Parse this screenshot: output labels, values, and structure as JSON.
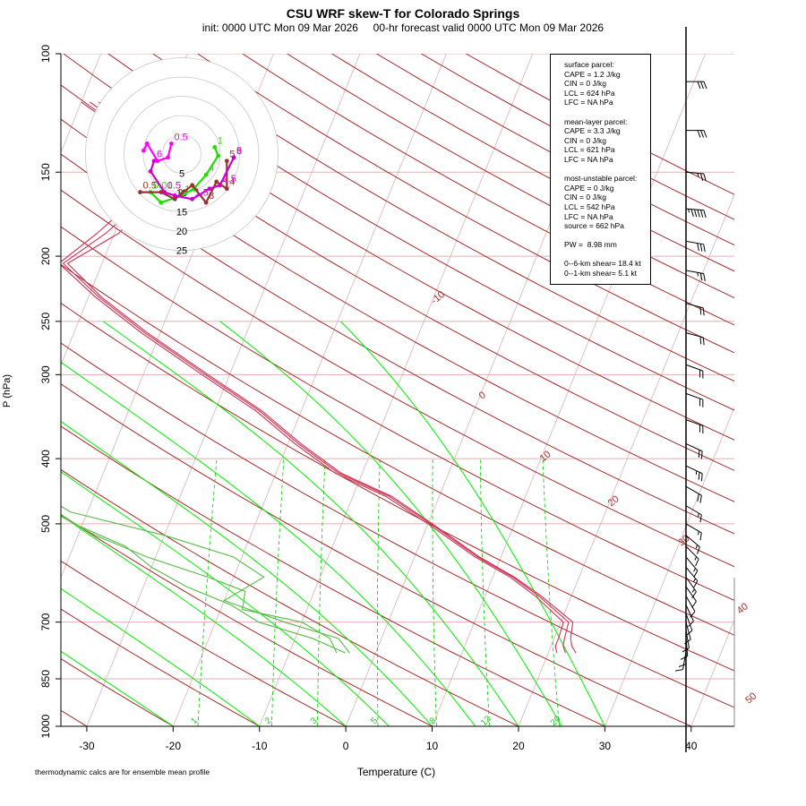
{
  "title": "CSU WRF skew-T for Colorado Springs",
  "subtitle": "init: 0000 UTC Mon 09 Mar 2026     00-hr forecast valid 0000 UTC Mon 09 Mar 2026",
  "footnote": "thermodynamic calcs are for ensemble mean profile",
  "colors": {
    "isotherm": "#d9b3b3",
    "dry_adiabat": "#a52a2a",
    "moist_adiabat": "#00ee00",
    "mixing_ratio": "#00cc00",
    "temperature": "#cc3355",
    "dewpoint": "#55bb44",
    "hodo_ring": "#c8c8c8"
  },
  "info_box": {
    "surface": [
      "surface parcel:",
      "CAPE = 1.2 J/kg",
      "CIN = 0 J/kg",
      "LCL = 624 hPa",
      "LFC = NA hPa"
    ],
    "mean_layer": [
      "mean-layer parcel:",
      "CAPE = 3.3 J/kg",
      "CIN = 0 J/kg",
      "LCL = 621 hPa",
      "LFC = NA hPa"
    ],
    "most_unstable": [
      "most-unstable parcel:",
      "CAPE = 0 J/kg",
      "CIN = 0 J/kg",
      "LCL = 542 hPa",
      "LFC = NA hPa",
      "source = 662 hPa"
    ],
    "pw": [
      "PW =  8.98 mm"
    ],
    "shear": [
      "0--6-km shear= 18.4 kt",
      "0--1-km shear= 5.1 kt"
    ]
  },
  "chart_data": {
    "type": "line",
    "title": "CSU WRF skew-T for Colorado Springs",
    "xlabel": "Temperature (C)",
    "ylabel": "P (hPa)",
    "xlim": [
      -33,
      45
    ],
    "ylim": [
      1000,
      100
    ],
    "x_ticks": [
      "-30",
      "-20",
      "-10",
      "0",
      "10",
      "20",
      "30",
      "40"
    ],
    "x_tick_values": [
      -30,
      -20,
      -10,
      0,
      10,
      20,
      30,
      40
    ],
    "p_ticks": [
      "100",
      "150",
      "200",
      "250",
      "300",
      "400",
      "500",
      "700",
      "850",
      "1000"
    ],
    "p_tick_values": [
      100,
      150,
      200,
      250,
      300,
      400,
      500,
      700,
      850,
      1000
    ],
    "mixing_ratio_labels": [
      "1",
      "2",
      "3",
      "5",
      "8",
      "12",
      "20"
    ],
    "isotherm_labels": [
      "-10",
      "0",
      "10",
      "20",
      "30",
      "40",
      "50"
    ],
    "isotherm_label_values": [
      -10,
      0,
      10,
      20,
      30,
      40,
      50
    ],
    "series": [
      {
        "kind": "temperature",
        "points": [
          [
            778,
            23.2
          ],
          [
            760,
            22.4
          ],
          [
            740,
            21.9
          ],
          [
            700,
            21.4
          ],
          [
            640,
            16.5
          ],
          [
            600,
            12.5
          ],
          [
            560,
            7.5
          ],
          [
            500,
            0.5
          ],
          [
            455,
            -5.5
          ],
          [
            420,
            -12.5
          ],
          [
            380,
            -18.5
          ],
          [
            340,
            -24.5
          ],
          [
            300,
            -32.5
          ],
          [
            260,
            -41.5
          ],
          [
            230,
            -48.5
          ],
          [
            205,
            -54
          ],
          [
            185,
            -49.5
          ],
          [
            160,
            -46.5
          ],
          [
            145,
            -48
          ],
          [
            128,
            -53
          ],
          [
            118,
            -58
          ]
        ]
      },
      {
        "kind": "temperature",
        "points": [
          [
            778,
            22.0
          ],
          [
            760,
            21.4
          ],
          [
            740,
            21.2
          ],
          [
            700,
            20.9
          ],
          [
            640,
            16.2
          ],
          [
            600,
            12.3
          ],
          [
            560,
            7.3
          ],
          [
            500,
            0.3
          ],
          [
            455,
            -5.8
          ],
          [
            420,
            -12.8
          ],
          [
            380,
            -18.8
          ],
          [
            340,
            -24.8
          ],
          [
            300,
            -32.8
          ],
          [
            260,
            -41.8
          ],
          [
            230,
            -48.8
          ],
          [
            205,
            -54.5
          ],
          [
            185,
            -51
          ],
          [
            160,
            -47.5
          ],
          [
            145,
            -49
          ],
          [
            128,
            -54
          ],
          [
            118,
            -59
          ]
        ]
      },
      {
        "kind": "temperature",
        "points": [
          [
            778,
            21.0
          ],
          [
            760,
            20.5
          ],
          [
            740,
            20.5
          ],
          [
            700,
            20.3
          ],
          [
            640,
            15.8
          ],
          [
            600,
            12.0
          ],
          [
            560,
            7.0
          ],
          [
            500,
            0.0
          ],
          [
            455,
            -6.2
          ],
          [
            420,
            -13.2
          ],
          [
            380,
            -19.2
          ],
          [
            340,
            -25.2
          ],
          [
            300,
            -33.2
          ],
          [
            260,
            -42.2
          ],
          [
            230,
            -49.2
          ],
          [
            205,
            -55
          ],
          [
            185,
            -52
          ],
          [
            160,
            -48.5
          ],
          [
            145,
            -50
          ],
          [
            128,
            -55
          ],
          [
            118,
            -60
          ]
        ]
      },
      {
        "kind": "dewpoint",
        "points": [
          [
            778,
            -3.0
          ],
          [
            740,
            -5.0
          ],
          [
            700,
            -12.0
          ],
          [
            650,
            -20.0
          ],
          [
            600,
            -16.5
          ],
          [
            560,
            -21.0
          ],
          [
            520,
            -30.0
          ],
          [
            480,
            -42.0
          ],
          [
            440,
            -48.0
          ],
          [
            400,
            -51.0
          ],
          [
            360,
            -52.0
          ],
          [
            320,
            -56.0
          ],
          [
            280,
            -63.0
          ],
          [
            250,
            -69.0
          ],
          [
            220,
            -76.0
          ],
          [
            190,
            -81.0
          ],
          [
            160,
            -86.0
          ]
        ]
      },
      {
        "kind": "dewpoint",
        "points": [
          [
            778,
            -4.5
          ],
          [
            740,
            -6.0
          ],
          [
            700,
            -10.0
          ],
          [
            670,
            -17.5
          ],
          [
            630,
            -18.0
          ],
          [
            600,
            -23.0
          ],
          [
            560,
            -31.0
          ],
          [
            520,
            -38.0
          ],
          [
            480,
            -44.0
          ],
          [
            440,
            -48.5
          ],
          [
            400,
            -52.0
          ],
          [
            360,
            -53.5
          ],
          [
            320,
            -57.0
          ],
          [
            280,
            -64.0
          ],
          [
            250,
            -70.0
          ],
          [
            220,
            -77.0
          ],
          [
            190,
            -82.0
          ],
          [
            160,
            -87.0
          ]
        ]
      },
      {
        "kind": "dewpoint",
        "points": [
          [
            778,
            -3.5
          ],
          [
            740,
            -8.0
          ],
          [
            700,
            -15.0
          ],
          [
            660,
            -19.0
          ],
          [
            620,
            -25.0
          ],
          [
            580,
            -30.0
          ],
          [
            540,
            -34.0
          ],
          [
            500,
            -41.0
          ],
          [
            460,
            -46.0
          ],
          [
            420,
            -49.0
          ],
          [
            380,
            -51.5
          ],
          [
            340,
            -55.0
          ],
          [
            300,
            -60.0
          ],
          [
            260,
            -67.0
          ],
          [
            230,
            -74.0
          ],
          [
            200,
            -80.0
          ],
          [
            170,
            -85.0
          ]
        ]
      }
    ],
    "hodograph": {
      "ring_labels": [
        "5",
        "10",
        "15",
        "20",
        "25"
      ],
      "ring_values": [
        5,
        10,
        15,
        20,
        25
      ],
      "series": [
        {
          "name": "",
          "color": "#22dd00",
          "labels": [
            "1",
            "4",
            "1.5",
            "0.01"
          ],
          "points": [
            [
              9.5,
              -2
            ],
            [
              10.5,
              0.5
            ],
            [
              7,
              6
            ],
            [
              3.5,
              10
            ],
            [
              0,
              12
            ],
            [
              -6,
              14
            ],
            [
              -9,
              11
            ]
          ]
        },
        {
          "name": "",
          "color": "#993333",
          "labels": [
            "0.5",
            "2",
            "3",
            "4",
            "5"
          ],
          "points": [
            [
              -12,
              11
            ],
            [
              -6,
              11
            ],
            [
              -2,
              13
            ],
            [
              3,
              9
            ],
            [
              7,
              14
            ],
            [
              10,
              8
            ],
            [
              13,
              10
            ],
            [
              13,
              2
            ]
          ]
        },
        {
          "name": "",
          "color": "#cc00cc",
          "labels": [
            "6",
            "0.5",
            "1.5",
            "2.5",
            "3",
            "5",
            "6"
          ],
          "points": [
            [
              -8,
              2
            ],
            [
              -9,
              5
            ],
            [
              -5,
              11
            ],
            [
              -2,
              12
            ],
            [
              3,
              13
            ],
            [
              8,
              10
            ],
            [
              11,
              9
            ],
            [
              15,
              1
            ]
          ]
        },
        {
          "name": "",
          "color": "#ff00ff",
          "labels": [
            "0.5"
          ],
          "points": [
            [
              -3,
              -3
            ],
            [
              -4,
              1
            ],
            [
              -7,
              2
            ],
            [
              -10,
              -3
            ],
            [
              -11,
              -1
            ]
          ]
        }
      ]
    },
    "wind_barbs": [
      {
        "p": 110,
        "dir": 270,
        "speed": 30
      },
      {
        "p": 130,
        "dir": 270,
        "speed": 30
      },
      {
        "p": 150,
        "dir": 275,
        "speed": 25
      },
      {
        "p": 170,
        "dir": 275,
        "speed": 55
      },
      {
        "p": 190,
        "dir": 280,
        "speed": 30
      },
      {
        "p": 210,
        "dir": 280,
        "speed": 25
      },
      {
        "p": 235,
        "dir": 285,
        "speed": 20
      },
      {
        "p": 260,
        "dir": 285,
        "speed": 20
      },
      {
        "p": 290,
        "dir": 290,
        "speed": 20
      },
      {
        "p": 320,
        "dir": 290,
        "speed": 20
      },
      {
        "p": 350,
        "dir": 290,
        "speed": 20
      },
      {
        "p": 380,
        "dir": 295,
        "speed": 20
      },
      {
        "p": 410,
        "dir": 295,
        "speed": 25
      },
      {
        "p": 440,
        "dir": 300,
        "speed": 20
      },
      {
        "p": 470,
        "dir": 300,
        "speed": 15
      },
      {
        "p": 500,
        "dir": 300,
        "speed": 15
      },
      {
        "p": 520,
        "dir": 310,
        "speed": 15
      },
      {
        "p": 540,
        "dir": 315,
        "speed": 15
      },
      {
        "p": 560,
        "dir": 320,
        "speed": 15
      },
      {
        "p": 580,
        "dir": 320,
        "speed": 15
      },
      {
        "p": 600,
        "dir": 325,
        "speed": 15
      },
      {
        "p": 620,
        "dir": 325,
        "speed": 10
      },
      {
        "p": 640,
        "dir": 330,
        "speed": 10
      },
      {
        "p": 660,
        "dir": 335,
        "speed": 10
      },
      {
        "p": 680,
        "dir": 340,
        "speed": 10
      },
      {
        "p": 700,
        "dir": 345,
        "speed": 10
      },
      {
        "p": 720,
        "dir": 350,
        "speed": 10
      },
      {
        "p": 740,
        "dir": 355,
        "speed": 10
      },
      {
        "p": 760,
        "dir": 360,
        "speed": 10
      },
      {
        "p": 775,
        "dir": 10,
        "speed": 10
      }
    ]
  }
}
